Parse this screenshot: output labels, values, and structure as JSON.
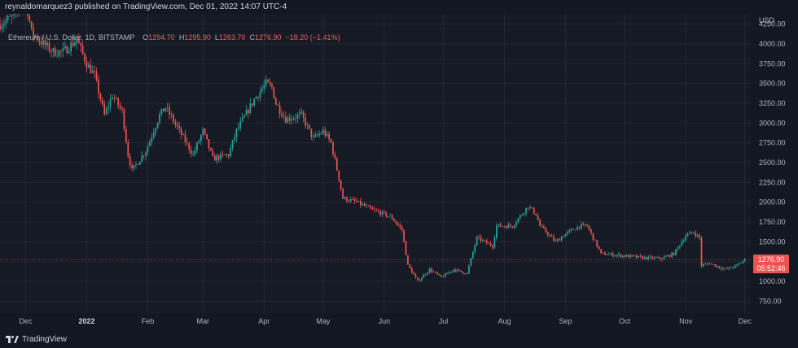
{
  "header": {
    "published": "reynaldomarquez3 published on TradingView.com, Dec 01, 2022 14:07 UTC-4"
  },
  "legend": {
    "symbol": "Ethereum / U.S. Dollar, 1D, BITSTAMP",
    "open_label": "O",
    "open": "1294.70",
    "high_label": "H",
    "high": "1295.90",
    "low_label": "L",
    "low": "1263.70",
    "close_label": "C",
    "close": "1276.90",
    "change": "−18.20 (−1.41%)"
  },
  "footer": {
    "brand": "TradingView"
  },
  "colors": {
    "up": "#26a69a",
    "down": "#ef5350",
    "background": "#161a25",
    "grid": "#232734",
    "axis_text": "#b2b5be"
  },
  "chart_data": {
    "type": "candlestick",
    "axis_unit": "USD",
    "y_ticks": [
      750,
      1000,
      1250,
      1500,
      1750,
      2000,
      2250,
      2500,
      2750,
      3000,
      3250,
      3500,
      3750,
      4000,
      4250
    ],
    "y_tick_labels": [
      "750.00",
      "1000.00",
      "1250.00",
      "1500.00",
      "1750.00",
      "2000.00",
      "2250.00",
      "2500.00",
      "2750.00",
      "3000.00",
      "3250.00",
      "3500.00",
      "3750.00",
      "4000.00",
      "4250.00"
    ],
    "ylim": [
      600,
      4380
    ],
    "x_ticks": [
      {
        "label": "Dec",
        "date": "2021-12-01",
        "bold": false
      },
      {
        "label": "2022",
        "date": "2022-01-01",
        "bold": true
      },
      {
        "label": "Feb",
        "date": "2022-02-01",
        "bold": false
      },
      {
        "label": "Mar",
        "date": "2022-03-01",
        "bold": false
      },
      {
        "label": "Apr",
        "date": "2022-04-01",
        "bold": false
      },
      {
        "label": "May",
        "date": "2022-05-01",
        "bold": false
      },
      {
        "label": "Jun",
        "date": "2022-06-01",
        "bold": false
      },
      {
        "label": "Jul",
        "date": "2022-07-01",
        "bold": false
      },
      {
        "label": "Aug",
        "date": "2022-08-01",
        "bold": false
      },
      {
        "label": "Sep",
        "date": "2022-09-01",
        "bold": false
      },
      {
        "label": "Oct",
        "date": "2022-10-01",
        "bold": false
      },
      {
        "label": "Nov",
        "date": "2022-11-01",
        "bold": false
      },
      {
        "label": "Dec",
        "date": "2022-12-01",
        "bold": false
      }
    ],
    "xlim": [
      "2021-11-18",
      "2022-12-04"
    ],
    "last_price": "1276.90",
    "last_price_value": 1276.9,
    "countdown": "05:52:46",
    "price_path": [
      [
        "2021-11-18",
        4250
      ],
      [
        "2021-11-25",
        4350
      ],
      [
        "2021-12-01",
        4550
      ],
      [
        "2021-12-04",
        4150
      ],
      [
        "2021-12-10",
        4000
      ],
      [
        "2021-12-15",
        3900
      ],
      [
        "2021-12-20",
        3900
      ],
      [
        "2021-12-27",
        4050
      ],
      [
        "2022-01-01",
        3750
      ],
      [
        "2022-01-05",
        3600
      ],
      [
        "2022-01-10",
        3100
      ],
      [
        "2022-01-14",
        3350
      ],
      [
        "2022-01-19",
        3150
      ],
      [
        "2022-01-22",
        2600
      ],
      [
        "2022-01-24",
        2400
      ],
      [
        "2022-01-31",
        2650
      ],
      [
        "2022-02-07",
        3100
      ],
      [
        "2022-02-10",
        3200
      ],
      [
        "2022-02-17",
        2900
      ],
      [
        "2022-02-24",
        2600
      ],
      [
        "2022-03-01",
        2900
      ],
      [
        "2022-03-06",
        2550
      ],
      [
        "2022-03-14",
        2600
      ],
      [
        "2022-03-18",
        2900
      ],
      [
        "2022-03-27",
        3300
      ],
      [
        "2022-04-02",
        3500
      ],
      [
        "2022-04-05",
        3450
      ],
      [
        "2022-04-07",
        3250
      ],
      [
        "2022-04-12",
        3050
      ],
      [
        "2022-04-20",
        3100
      ],
      [
        "2022-04-26",
        2800
      ],
      [
        "2022-05-01",
        2900
      ],
      [
        "2022-05-05",
        2750
      ],
      [
        "2022-05-09",
        2300
      ],
      [
        "2022-05-11",
        2050
      ],
      [
        "2022-05-18",
        2000
      ],
      [
        "2022-05-26",
        1900
      ],
      [
        "2022-06-01",
        1850
      ],
      [
        "2022-06-05",
        1800
      ],
      [
        "2022-06-10",
        1650
      ],
      [
        "2022-06-13",
        1200
      ],
      [
        "2022-06-18",
        1000
      ],
      [
        "2022-06-24",
        1150
      ],
      [
        "2022-06-30",
        1050
      ],
      [
        "2022-07-06",
        1150
      ],
      [
        "2022-07-13",
        1100
      ],
      [
        "2022-07-18",
        1550
      ],
      [
        "2022-07-26",
        1450
      ],
      [
        "2022-07-28",
        1700
      ],
      [
        "2022-08-05",
        1700
      ],
      [
        "2022-08-13",
        1950
      ],
      [
        "2022-08-17",
        1850
      ],
      [
        "2022-08-19",
        1700
      ],
      [
        "2022-08-27",
        1500
      ],
      [
        "2022-09-01",
        1600
      ],
      [
        "2022-09-08",
        1700
      ],
      [
        "2022-09-12",
        1700
      ],
      [
        "2022-09-14",
        1600
      ],
      [
        "2022-09-19",
        1350
      ],
      [
        "2022-09-28",
        1330
      ],
      [
        "2022-10-10",
        1300
      ],
      [
        "2022-10-20",
        1290
      ],
      [
        "2022-10-26",
        1350
      ],
      [
        "2022-11-01",
        1580
      ],
      [
        "2022-11-05",
        1620
      ],
      [
        "2022-11-08",
        1550
      ],
      [
        "2022-11-09",
        1200
      ],
      [
        "2022-11-13",
        1230
      ],
      [
        "2022-11-21",
        1150
      ],
      [
        "2022-11-27",
        1200
      ],
      [
        "2022-12-01",
        1277
      ]
    ]
  }
}
